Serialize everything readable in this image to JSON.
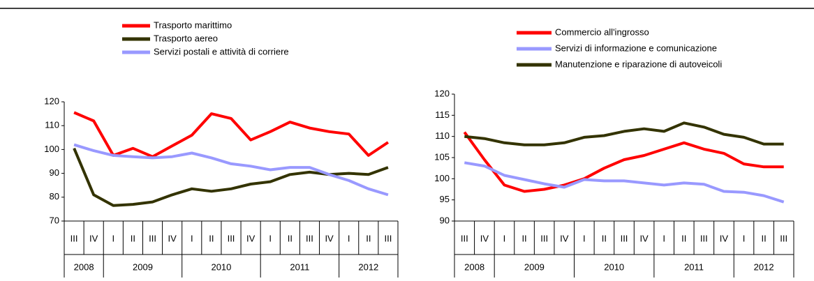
{
  "chart_data": [
    {
      "type": "line",
      "categories": [
        "III",
        "IV",
        "I",
        "II",
        "III",
        "IV",
        "I",
        "II",
        "III",
        "IV",
        "I",
        "II",
        "III",
        "IV",
        "I",
        "II",
        "III"
      ],
      "years": [
        "2008",
        "2009",
        "2010",
        "2011",
        "2012"
      ],
      "ylim": [
        70,
        120
      ],
      "yticks": [
        70,
        80,
        90,
        100,
        110,
        120
      ],
      "series": [
        {
          "name": "Trasporto marittimo",
          "color": "#ff0000",
          "values": [
            115.5,
            112,
            97.5,
            100.5,
            97,
            101.5,
            106,
            115,
            113,
            104,
            107.5,
            111.5,
            109,
            107.5,
            106.5,
            97.5,
            103
          ]
        },
        {
          "name": "Trasporto aereo",
          "color": "#333300",
          "values": [
            100.5,
            81,
            76.5,
            77,
            78,
            81,
            83.5,
            82.5,
            83.5,
            85.5,
            86.5,
            89.5,
            90.5,
            89.5,
            90,
            89.5,
            92.5
          ]
        },
        {
          "name": "Servizi postali e attività di corriere",
          "color": "#9999ff",
          "values": [
            102,
            99.5,
            97.5,
            97,
            96.5,
            97,
            98.5,
            96.5,
            94,
            93,
            91.5,
            92.5,
            92.5,
            89.5,
            87,
            83.5,
            81
          ]
        }
      ]
    },
    {
      "type": "line",
      "categories": [
        "III",
        "IV",
        "I",
        "II",
        "III",
        "IV",
        "I",
        "II",
        "III",
        "IV",
        "I",
        "II",
        "III",
        "IV",
        "I",
        "II",
        "III"
      ],
      "years": [
        "2008",
        "2009",
        "2010",
        "2011",
        "2012"
      ],
      "ylim": [
        90,
        120
      ],
      "yticks": [
        90,
        95,
        100,
        105,
        110,
        115,
        120
      ],
      "series": [
        {
          "name": "Commercio all'ingrosso",
          "color": "#ff0000",
          "values": [
            111,
            104.5,
            98.5,
            97,
            97.5,
            98.5,
            100,
            102.5,
            104.5,
            105.5,
            107,
            108.5,
            107,
            106,
            103.5,
            102.8,
            102.8
          ]
        },
        {
          "name": "Servizi di informazione e comunicazione",
          "color": "#9999ff",
          "values": [
            103.8,
            103,
            100.8,
            99.8,
            98.8,
            98,
            99.8,
            99.5,
            99.5,
            99,
            98.5,
            99,
            98.7,
            97,
            96.8,
            96,
            94.5
          ]
        },
        {
          "name": "Manutenzione e riparazione di autoveicoli",
          "color": "#333300",
          "values": [
            110,
            109.5,
            108.5,
            108,
            108,
            108.5,
            109.8,
            110.2,
            111.2,
            111.8,
            111.2,
            113.2,
            112.2,
            110.5,
            109.8,
            108.2,
            108.2
          ]
        }
      ]
    }
  ]
}
